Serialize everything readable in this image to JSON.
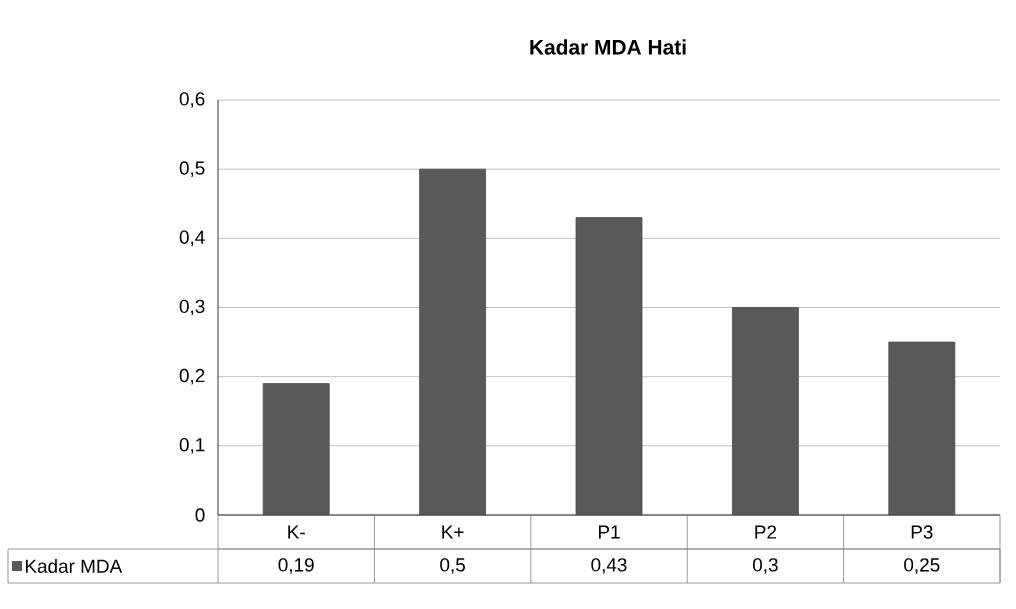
{
  "chart_data": {
    "type": "bar",
    "title": "Kadar MDA Hati",
    "categories": [
      "K-",
      "K+",
      "P1",
      "P2",
      "P3"
    ],
    "series": [
      {
        "name": "Kadar MDA",
        "color": "#595959",
        "values": [
          0.19,
          0.5,
          0.43,
          0.3,
          0.25
        ],
        "value_labels": [
          "0,19",
          "0,5",
          "0,43",
          "0,3",
          "0,25"
        ]
      }
    ],
    "ylim": [
      0,
      0.6
    ],
    "yticks": [
      {
        "value": 0,
        "label": "0"
      },
      {
        "value": 0.1,
        "label": "0,1"
      },
      {
        "value": 0.2,
        "label": "0,2"
      },
      {
        "value": 0.3,
        "label": "0,3"
      },
      {
        "value": 0.4,
        "label": "0,4"
      },
      {
        "value": 0.5,
        "label": "0,5"
      },
      {
        "value": 0.6,
        "label": "0,6"
      }
    ],
    "grid": "y",
    "legend": "bottom"
  }
}
